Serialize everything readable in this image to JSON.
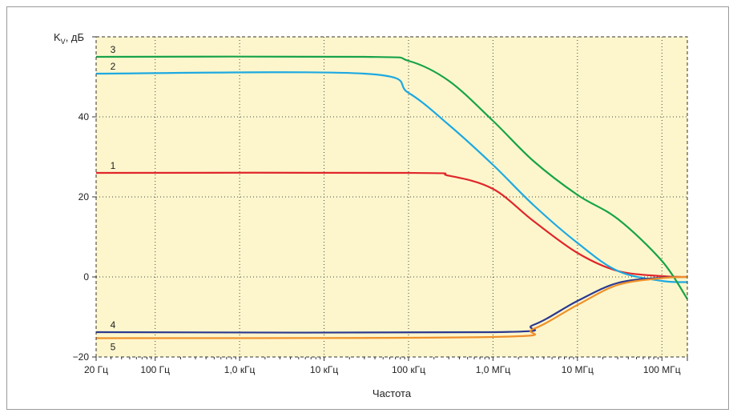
{
  "chart_data": {
    "type": "line",
    "ylabel": "K",
    "ylabel_sub": "V",
    "ylabel_unit": ", дБ",
    "xlabel": "Частота",
    "x_scale": "log",
    "x_range_hz": [
      20,
      200000000
    ],
    "ylim": [
      -20,
      60
    ],
    "y_ticks": [
      -20,
      0,
      20,
      40
    ],
    "y_tick_labels": [
      "−20",
      "0",
      "20",
      "40"
    ],
    "x_ticks_hz": [
      20,
      100,
      1000,
      10000,
      100000,
      1000000,
      10000000,
      100000000
    ],
    "x_tick_labels": [
      "20 Гц",
      "100 Гц",
      "1,0 кГц",
      "10 кГц",
      "100 кГц",
      "1,0 МГц",
      "10 МГц",
      "100 МГц"
    ],
    "grid": true,
    "background": "#fdf6cc",
    "series": [
      {
        "name": "1",
        "color": "#e0262b",
        "points": [
          [
            20,
            26
          ],
          [
            100000,
            26
          ],
          [
            300000,
            25.3
          ],
          [
            1000000,
            22
          ],
          [
            3000000,
            14
          ],
          [
            10000000,
            6
          ],
          [
            30000000,
            1.5
          ],
          [
            100000000,
            0.2
          ],
          [
            200000000,
            0
          ]
        ]
      },
      {
        "name": "2",
        "color": "#1ea9e1",
        "points": [
          [
            20,
            50.8
          ],
          [
            30000,
            50.8
          ],
          [
            100000,
            46
          ],
          [
            300000,
            38
          ],
          [
            1000000,
            28
          ],
          [
            3000000,
            18
          ],
          [
            10000000,
            8.5
          ],
          [
            30000000,
            1.5
          ],
          [
            100000000,
            -1
          ],
          [
            200000000,
            -1.3
          ]
        ]
      },
      {
        "name": "3",
        "color": "#17a34a",
        "points": [
          [
            20,
            55
          ],
          [
            30000,
            55
          ],
          [
            100000,
            54
          ],
          [
            300000,
            49
          ],
          [
            1000000,
            39
          ],
          [
            3000000,
            29
          ],
          [
            10000000,
            20.5
          ],
          [
            30000000,
            14.5
          ],
          [
            100000000,
            4
          ],
          [
            200000000,
            -5.5
          ]
        ]
      },
      {
        "name": "4",
        "color": "#2b3990",
        "points": [
          [
            20,
            -13.8
          ],
          [
            1000000,
            -13.8
          ],
          [
            3000000,
            -12
          ],
          [
            10000000,
            -6
          ],
          [
            30000000,
            -1.5
          ],
          [
            100000000,
            -0.2
          ],
          [
            200000000,
            0
          ]
        ]
      },
      {
        "name": "5",
        "color": "#f0902a",
        "points": [
          [
            20,
            -15.3
          ],
          [
            1000000,
            -15
          ],
          [
            3000000,
            -13
          ],
          [
            10000000,
            -7
          ],
          [
            30000000,
            -2
          ],
          [
            100000000,
            -0.3
          ],
          [
            200000000,
            0
          ]
        ]
      }
    ]
  }
}
